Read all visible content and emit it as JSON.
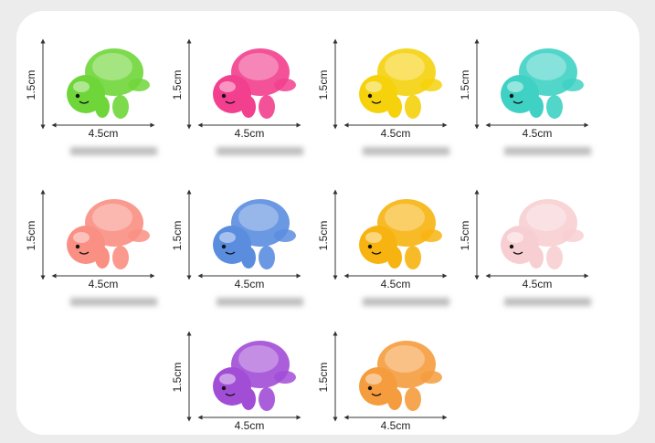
{
  "items": [
    {
      "height": "1.5cm",
      "width": "4.5cm",
      "color": "#6fd63a"
    },
    {
      "height": "1.5cm",
      "width": "4.5cm",
      "color": "#f23f8e"
    },
    {
      "height": "1.5cm",
      "width": "4.5cm",
      "color": "#f5d20c"
    },
    {
      "height": "1.5cm",
      "width": "4.5cm",
      "color": "#3fd1c4"
    },
    {
      "height": "1.5cm",
      "width": "4.5cm",
      "color": "#fa8f83"
    },
    {
      "height": "1.5cm",
      "width": "4.5cm",
      "color": "#5b8ddf"
    },
    {
      "height": "1.5cm",
      "width": "4.5cm",
      "color": "#f7b411"
    },
    {
      "height": "1.5cm",
      "width": "4.5cm",
      "color": "#f7cfd3"
    },
    {
      "height": "1.5cm",
      "width": "4.5cm",
      "color": "#a24dd6"
    },
    {
      "height": "1.5cm",
      "width": "4.5cm",
      "color": "#f59c3e"
    }
  ]
}
